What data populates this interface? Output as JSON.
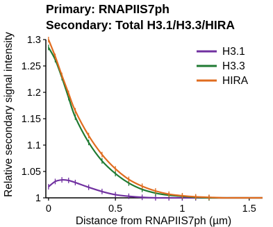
{
  "chart_data": {
    "type": "line",
    "title_lines": [
      "Primary: RNAPIIS7ph",
      "Secondary: Total H3.1/H3.3/HIRA"
    ],
    "xlabel": "Distance from RNAPIIS7ph (µm)",
    "ylabel": "Relative secondary signal intensity",
    "xlim": [
      -0.02,
      1.6
    ],
    "ylim": [
      1,
      1.3
    ],
    "xticks": [
      0,
      0.5,
      1,
      1.5
    ],
    "xtick_labels": [
      "0",
      "0.5",
      "1",
      "1.5"
    ],
    "yticks": [
      1,
      1.05,
      1.1,
      1.15,
      1.2,
      1.25,
      1.3
    ],
    "ytick_labels": [
      "1",
      "1.05",
      "1.1",
      "1.15",
      "1.2",
      "1.25",
      "1.3"
    ],
    "legend_position": "top-right",
    "series": [
      {
        "name": "H3.1",
        "color": "#7030a0",
        "x": [
          0,
          0.05,
          0.1,
          0.15,
          0.2,
          0.3,
          0.4,
          0.5,
          0.6,
          0.7,
          0.8,
          0.9,
          1.0,
          1.1,
          1.2,
          1.3,
          1.4,
          1.5,
          1.6
        ],
        "y": [
          1.021,
          1.031,
          1.034,
          1.033,
          1.029,
          1.02,
          1.012,
          1.006,
          1.003,
          1.001,
          1.0,
          1.0,
          1.0,
          1.0,
          1.0,
          1.0,
          1.0,
          1.0,
          1.0
        ]
      },
      {
        "name": "H3.3",
        "color": "#1f7a32",
        "x": [
          0,
          0.05,
          0.1,
          0.15,
          0.2,
          0.3,
          0.4,
          0.5,
          0.6,
          0.7,
          0.8,
          0.9,
          1.0,
          1.1,
          1.2,
          1.3,
          1.4,
          1.5,
          1.6
        ],
        "y": [
          1.285,
          1.262,
          1.228,
          1.19,
          1.153,
          1.105,
          1.07,
          1.046,
          1.028,
          1.016,
          1.009,
          1.005,
          1.003,
          1.001,
          1.0,
          1.0,
          1.0,
          1.0,
          1.0
        ]
      },
      {
        "name": "HIRA",
        "color": "#e06c1f",
        "x": [
          0,
          0.05,
          0.1,
          0.15,
          0.2,
          0.3,
          0.4,
          0.5,
          0.6,
          0.7,
          0.8,
          0.9,
          1.0,
          1.1,
          1.2,
          1.3,
          1.4,
          1.5,
          1.6
        ],
        "y": [
          1.3,
          1.268,
          1.232,
          1.198,
          1.165,
          1.118,
          1.082,
          1.055,
          1.035,
          1.022,
          1.013,
          1.007,
          1.004,
          1.002,
          1.001,
          1.0,
          1.0,
          1.0,
          1.0
        ]
      }
    ]
  }
}
